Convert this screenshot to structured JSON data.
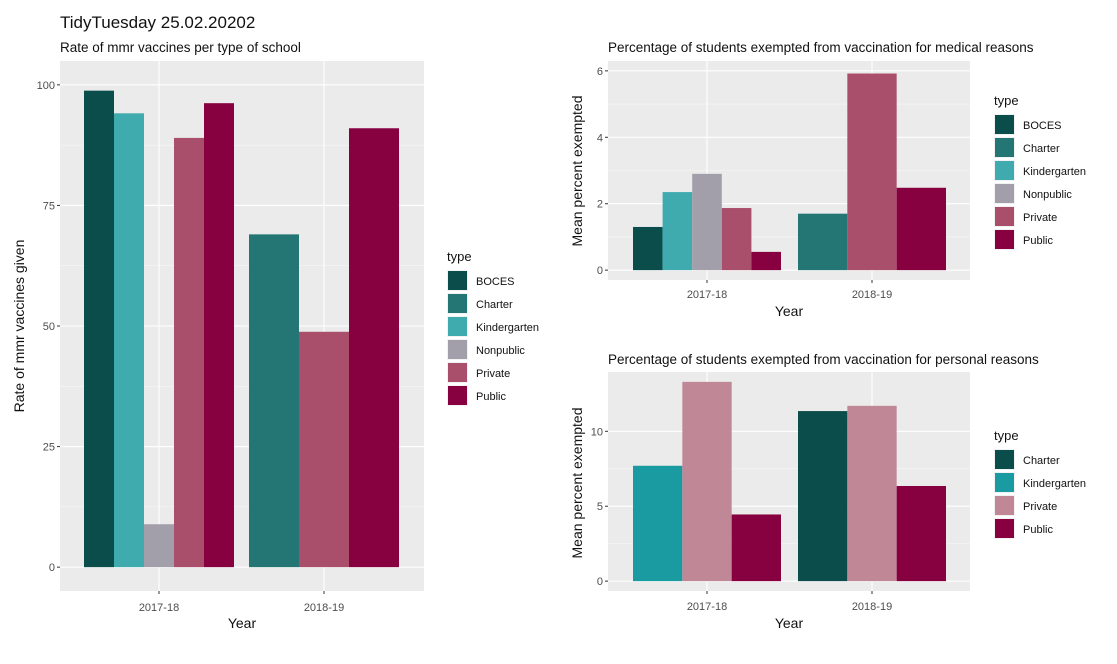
{
  "figure": {
    "title": "TidyTuesday 25.02.20202"
  },
  "chart_data": [
    {
      "type": "bar",
      "title": "Rate of mmr vaccines per type of school",
      "xlabel": "Year",
      "ylabel": "Rate of mmr vaccines given",
      "categories": [
        "2017-18",
        "2018-19"
      ],
      "ylim": [
        0,
        100
      ],
      "yticks": [
        0,
        25,
        50,
        75,
        100
      ],
      "grid": true,
      "legend_title": "type",
      "legend_position": "right",
      "series": [
        {
          "name": "BOCES",
          "color": "#0b4d4b",
          "values": [
            98.8,
            null
          ]
        },
        {
          "name": "Charter",
          "color": "#237674",
          "values": [
            null,
            69
          ]
        },
        {
          "name": "Kindergarten",
          "color": "#3fabaf",
          "values": [
            94.1,
            null
          ]
        },
        {
          "name": "Nonpublic",
          "color": "#a29fab",
          "values": [
            8.9,
            null
          ]
        },
        {
          "name": "Private",
          "color": "#aa4f6b",
          "values": [
            89,
            48.8
          ]
        },
        {
          "name": "Public",
          "color": "#87003f",
          "values": [
            96.2,
            91
          ]
        }
      ]
    },
    {
      "type": "bar",
      "title": "Percentage of students exempted from vaccination for medical reasons",
      "xlabel": "Year",
      "ylabel": "Mean percent exempted",
      "categories": [
        "2017-18",
        "2018-19"
      ],
      "ylim": [
        0,
        6
      ],
      "yticks": [
        0,
        2,
        4,
        6
      ],
      "grid": true,
      "legend_title": "type",
      "legend_position": "right",
      "series": [
        {
          "name": "BOCES",
          "color": "#0b4d4b",
          "values": [
            1.3,
            null
          ]
        },
        {
          "name": "Charter",
          "color": "#237674",
          "values": [
            null,
            1.7
          ]
        },
        {
          "name": "Kindergarten",
          "color": "#3fabaf",
          "values": [
            2.35,
            null
          ]
        },
        {
          "name": "Nonpublic",
          "color": "#a29fab",
          "values": [
            2.9,
            null
          ]
        },
        {
          "name": "Private",
          "color": "#aa4f6b",
          "values": [
            1.87,
            5.92
          ]
        },
        {
          "name": "Public",
          "color": "#87003f",
          "values": [
            0.55,
            2.48
          ]
        }
      ]
    },
    {
      "type": "bar",
      "title": "Percentage of students exempted from vaccination for personal reasons",
      "xlabel": "Year",
      "ylabel": "Mean percent exempted",
      "categories": [
        "2017-18",
        "2018-19"
      ],
      "ylim": [
        0,
        13.3
      ],
      "yticks": [
        0,
        5,
        10
      ],
      "grid": true,
      "legend_title": "type",
      "legend_position": "right",
      "series": [
        {
          "name": "Charter",
          "color": "#0b4d4b",
          "values": [
            null,
            11.35
          ]
        },
        {
          "name": "Kindergarten",
          "color": "#1a9ba1",
          "values": [
            7.7,
            null
          ]
        },
        {
          "name": "Private",
          "color": "#c08797",
          "values": [
            13.3,
            11.7
          ]
        },
        {
          "name": "Public",
          "color": "#87003f",
          "values": [
            4.45,
            6.35
          ]
        }
      ]
    }
  ]
}
